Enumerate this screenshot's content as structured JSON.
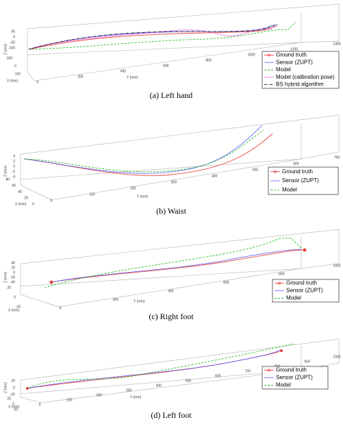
{
  "panels": [
    {
      "caption": "(a) Left hand",
      "axis_labels": {
        "x": "X (mm)",
        "y": "Y (mm)",
        "z": "Z (mm)"
      },
      "z_ticks": [
        "50",
        "0",
        "-50",
        "-100"
      ],
      "x_ticks": [
        "-100",
        "0",
        "100"
      ],
      "y_ticks": [
        "0",
        "200",
        "400",
        "600",
        "800",
        "1000",
        "1200",
        "1400"
      ],
      "legend": [
        "Ground truth",
        "Sensor (ZUPT)",
        "Model",
        "Model (calibration pose)",
        "BS hybrid algorithm"
      ]
    },
    {
      "caption": "(b) Waist",
      "axis_labels": {
        "x": "X (mm)",
        "y": "Y (mm)",
        "z": "Z (mm)"
      },
      "z_ticks": [
        "4",
        "2",
        "0",
        "-2",
        "-4"
      ],
      "x_ticks": [
        "80",
        "60",
        "40",
        "20",
        "0"
      ],
      "y_ticks": [
        "0",
        "100",
        "200",
        "300",
        "400",
        "500",
        "600",
        "700"
      ],
      "legend": [
        "Ground truth",
        "Sensor (ZUPT)",
        "Model"
      ]
    },
    {
      "caption": "(c) Right foot",
      "axis_labels": {
        "x": "X (mm)",
        "y": "Y (mm)",
        "z": "Z (mm)"
      },
      "z_ticks": [
        "40",
        "20",
        "0",
        "-20",
        "-40"
      ],
      "x_ticks": [
        "20",
        "0",
        "-20"
      ],
      "y_ticks": [
        "0",
        "200",
        "400",
        "600",
        "800",
        "1000"
      ],
      "legend": [
        "Ground truth",
        "Sensor (ZUPT)",
        "Model"
      ]
    },
    {
      "caption": "(d) Left foot",
      "axis_labels": {
        "x": "X (mm)",
        "y": "Y (mm)",
        "z": "Z (mm)"
      },
      "z_ticks": [
        "20",
        "0",
        "-20"
      ],
      "x_ticks": [
        "20",
        "0",
        "-20"
      ],
      "y_ticks": [
        "0",
        "100",
        "200",
        "300",
        "400",
        "500",
        "600",
        "700",
        "800",
        "900",
        "1000"
      ],
      "legend": [
        "Ground truth",
        "Sensor (ZUPT)",
        "Model"
      ]
    }
  ]
}
